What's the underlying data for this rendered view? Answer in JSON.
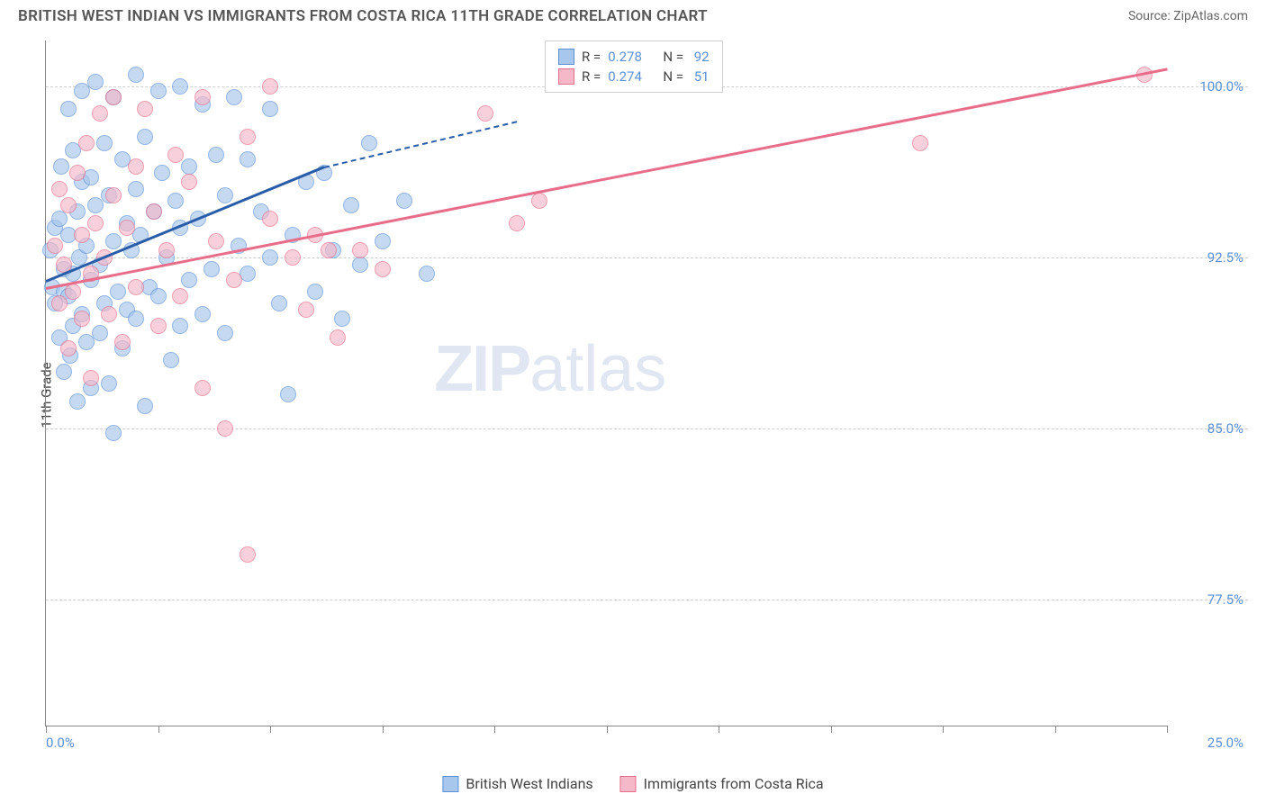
{
  "header": {
    "title": "BRITISH WEST INDIAN VS IMMIGRANTS FROM COSTA RICA 11TH GRADE CORRELATION CHART",
    "source": "Source: ZipAtlas.com"
  },
  "watermark": {
    "prefix": "ZIP",
    "suffix": "atlas"
  },
  "chart": {
    "type": "scatter",
    "y_axis_title": "11th Grade",
    "background_color": "#ffffff",
    "grid_color": "#d0d0d0",
    "axis_color": "#888888",
    "tick_label_color": "#5b8fd6",
    "marker_radius": 9,
    "marker_opacity": 0.65,
    "xlim": [
      0,
      25
    ],
    "ylim": [
      72,
      102
    ],
    "x_ticks": [
      0,
      2.5,
      5,
      7.5,
      10,
      12.5,
      15,
      17.5,
      20,
      22.5,
      25
    ],
    "x_min_label": "0.0%",
    "x_max_label": "25.0%",
    "y_grid": [
      {
        "value": 100.0,
        "label": "100.0%"
      },
      {
        "value": 92.5,
        "label": "92.5%"
      },
      {
        "value": 85.0,
        "label": "85.0%"
      },
      {
        "value": 77.5,
        "label": "77.5%"
      }
    ],
    "stats_box": {
      "left_pct": 44.5,
      "top_pct": 0,
      "rows": [
        {
          "series": "blue",
          "r_label": "R =",
          "r_val": "0.278",
          "n_label": "N =",
          "n_val": "92"
        },
        {
          "series": "pink",
          "r_label": "R =",
          "r_val": "0.274",
          "n_label": "N =",
          "n_val": "51"
        }
      ]
    },
    "series": {
      "blue": {
        "label": "British West Indians",
        "fill": "#a7c7ec",
        "stroke": "#5b8fd6",
        "line_color": "#2a5da8",
        "trend": {
          "x1": 0,
          "y1": 91.5,
          "x2": 6.2,
          "y2": 96.5,
          "dash_to_x": 10.5,
          "dash_to_y": 98.5
        },
        "points": [
          [
            0.1,
            92.8
          ],
          [
            0.15,
            91.2
          ],
          [
            0.2,
            93.8
          ],
          [
            0.2,
            90.5
          ],
          [
            0.3,
            89.0
          ],
          [
            0.3,
            94.2
          ],
          [
            0.35,
            96.5
          ],
          [
            0.4,
            92.0
          ],
          [
            0.4,
            87.5
          ],
          [
            0.4,
            91.0
          ],
          [
            0.5,
            99.0
          ],
          [
            0.5,
            93.5
          ],
          [
            0.5,
            90.8
          ],
          [
            0.55,
            88.2
          ],
          [
            0.6,
            97.2
          ],
          [
            0.6,
            91.8
          ],
          [
            0.6,
            89.5
          ],
          [
            0.7,
            94.5
          ],
          [
            0.7,
            86.2
          ],
          [
            0.75,
            92.5
          ],
          [
            0.8,
            99.8
          ],
          [
            0.8,
            95.8
          ],
          [
            0.8,
            90.0
          ],
          [
            0.9,
            93.0
          ],
          [
            0.9,
            88.8
          ],
          [
            1.0,
            96.0
          ],
          [
            1.0,
            91.5
          ],
          [
            1.0,
            86.8
          ],
          [
            1.1,
            100.2
          ],
          [
            1.1,
            94.8
          ],
          [
            1.2,
            92.2
          ],
          [
            1.2,
            89.2
          ],
          [
            1.3,
            97.5
          ],
          [
            1.3,
            90.5
          ],
          [
            1.4,
            95.2
          ],
          [
            1.4,
            87.0
          ],
          [
            1.5,
            99.5
          ],
          [
            1.5,
            93.2
          ],
          [
            1.5,
            84.8
          ],
          [
            1.6,
            91.0
          ],
          [
            1.7,
            96.8
          ],
          [
            1.7,
            88.5
          ],
          [
            1.8,
            94.0
          ],
          [
            1.8,
            90.2
          ],
          [
            1.9,
            92.8
          ],
          [
            2.0,
            100.5
          ],
          [
            2.0,
            95.5
          ],
          [
            2.0,
            89.8
          ],
          [
            2.1,
            93.5
          ],
          [
            2.2,
            97.8
          ],
          [
            2.2,
            86.0
          ],
          [
            2.3,
            91.2
          ],
          [
            2.4,
            94.5
          ],
          [
            2.5,
            99.8
          ],
          [
            2.5,
            90.8
          ],
          [
            2.6,
            96.2
          ],
          [
            2.7,
            92.5
          ],
          [
            2.8,
            88.0
          ],
          [
            2.9,
            95.0
          ],
          [
            3.0,
            100.0
          ],
          [
            3.0,
            93.8
          ],
          [
            3.0,
            89.5
          ],
          [
            3.2,
            96.5
          ],
          [
            3.2,
            91.5
          ],
          [
            3.4,
            94.2
          ],
          [
            3.5,
            99.2
          ],
          [
            3.5,
            90.0
          ],
          [
            3.7,
            92.0
          ],
          [
            3.8,
            97.0
          ],
          [
            4.0,
            95.2
          ],
          [
            4.0,
            89.2
          ],
          [
            4.2,
            99.5
          ],
          [
            4.3,
            93.0
          ],
          [
            4.5,
            91.8
          ],
          [
            4.5,
            96.8
          ],
          [
            4.8,
            94.5
          ],
          [
            5.0,
            99.0
          ],
          [
            5.0,
            92.5
          ],
          [
            5.2,
            90.5
          ],
          [
            5.4,
            86.5
          ],
          [
            5.5,
            93.5
          ],
          [
            5.8,
            95.8
          ],
          [
            6.0,
            91.0
          ],
          [
            6.2,
            96.2
          ],
          [
            6.4,
            92.8
          ],
          [
            6.6,
            89.8
          ],
          [
            6.8,
            94.8
          ],
          [
            7.0,
            92.2
          ],
          [
            7.2,
            97.5
          ],
          [
            7.5,
            93.2
          ],
          [
            8.0,
            95.0
          ],
          [
            8.5,
            91.8
          ]
        ]
      },
      "pink": {
        "label": "Immigrants from Costa Rica",
        "fill": "#f5b8c8",
        "stroke": "#e86d8a",
        "line_color": "#e86d8a",
        "trend": {
          "x1": 0,
          "y1": 91.2,
          "x2": 25,
          "y2": 100.8
        },
        "points": [
          [
            0.2,
            93.0
          ],
          [
            0.3,
            90.5
          ],
          [
            0.3,
            95.5
          ],
          [
            0.4,
            92.2
          ],
          [
            0.5,
            88.5
          ],
          [
            0.5,
            94.8
          ],
          [
            0.6,
            91.0
          ],
          [
            0.7,
            96.2
          ],
          [
            0.8,
            89.8
          ],
          [
            0.8,
            93.5
          ],
          [
            0.9,
            97.5
          ],
          [
            1.0,
            91.8
          ],
          [
            1.0,
            87.2
          ],
          [
            1.1,
            94.0
          ],
          [
            1.2,
            98.8
          ],
          [
            1.3,
            92.5
          ],
          [
            1.4,
            90.0
          ],
          [
            1.5,
            95.2
          ],
          [
            1.5,
            99.5
          ],
          [
            1.7,
            88.8
          ],
          [
            1.8,
            93.8
          ],
          [
            2.0,
            96.5
          ],
          [
            2.0,
            91.2
          ],
          [
            2.2,
            99.0
          ],
          [
            2.4,
            94.5
          ],
          [
            2.5,
            89.5
          ],
          [
            2.7,
            92.8
          ],
          [
            2.9,
            97.0
          ],
          [
            3.0,
            90.8
          ],
          [
            3.2,
            95.8
          ],
          [
            3.5,
            99.5
          ],
          [
            3.5,
            86.8
          ],
          [
            3.8,
            93.2
          ],
          [
            4.0,
            85.0
          ],
          [
            4.2,
            91.5
          ],
          [
            4.5,
            79.5
          ],
          [
            4.5,
            97.8
          ],
          [
            5.0,
            94.2
          ],
          [
            5.0,
            100.0
          ],
          [
            5.5,
            92.5
          ],
          [
            5.8,
            90.2
          ],
          [
            6.0,
            93.5
          ],
          [
            6.3,
            92.8
          ],
          [
            6.5,
            89.0
          ],
          [
            7.0,
            92.8
          ],
          [
            7.5,
            92.0
          ],
          [
            9.8,
            98.8
          ],
          [
            10.5,
            94.0
          ],
          [
            11.0,
            95.0
          ],
          [
            19.5,
            97.5
          ],
          [
            24.5,
            100.5
          ]
        ]
      }
    }
  },
  "legend": {
    "items": [
      {
        "series": "blue",
        "label": "British West Indians"
      },
      {
        "series": "pink",
        "label": "Immigrants from Costa Rica"
      }
    ]
  }
}
